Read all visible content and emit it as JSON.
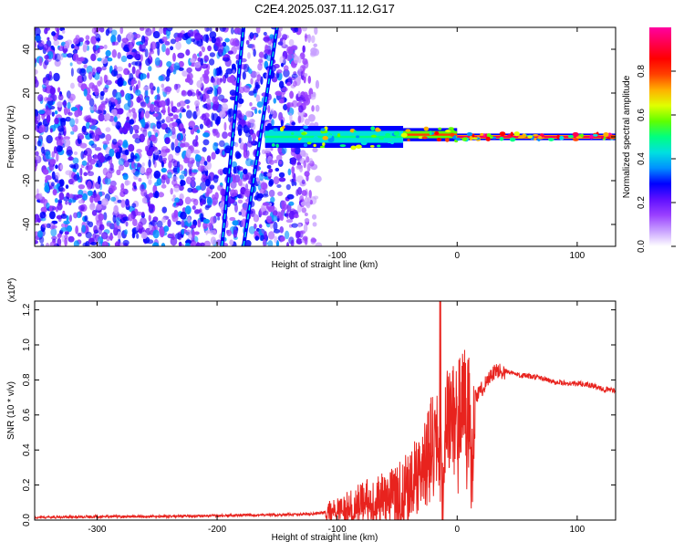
{
  "title": "C2E4.2025.037.11.12.G17",
  "chart_data": [
    {
      "type": "heatmap",
      "xlabel": "Height of straight line (km)",
      "ylabel": "Frequency (Hz)",
      "xlim": [
        -352,
        132
      ],
      "ylim": [
        -50,
        50
      ],
      "xticks": [
        -300,
        -200,
        -100,
        0,
        100
      ],
      "yticks": [
        -40,
        -20,
        0,
        20,
        40
      ],
      "colorbar": {
        "label": "Normalized spectral amplitude",
        "range": [
          0,
          1
        ],
        "ticks": [
          0.0,
          0.2,
          0.4,
          0.6,
          0.8
        ],
        "colors": [
          "#ffffff",
          "#c8a0ff",
          "#9a40ff",
          "#6010ff",
          "#0000ff",
          "#0090ff",
          "#00e0e0",
          "#00ff80",
          "#60ff00",
          "#e0ff00",
          "#ffb000",
          "#ff4000",
          "#ff0000",
          "#ff0050",
          "#ff00a0"
        ]
      },
      "features": [
        {
          "kind": "noise",
          "x_range": [
            -352,
            -140
          ]
        },
        {
          "kind": "streak",
          "from": [
            -196,
            -50
          ],
          "to": [
            -178,
            50
          ]
        },
        {
          "kind": "streak",
          "from": [
            -178,
            -50
          ],
          "to": [
            -150,
            50
          ]
        },
        {
          "kind": "band",
          "x_range": [
            -160,
            -45
          ],
          "center_hz": 0,
          "halfwidth_hz": 5,
          "level": 0.5
        },
        {
          "kind": "band",
          "x_range": [
            -45,
            0
          ],
          "center_hz": 1,
          "halfwidth_hz": 3,
          "level": 0.75
        },
        {
          "kind": "band",
          "x_range": [
            0,
            132
          ],
          "center_hz": 0,
          "halfwidth_hz": 1.5,
          "level": 0.9
        }
      ],
      "x_tick_labels": [
        "-300",
        "-200",
        "-100",
        "0",
        "100"
      ],
      "y_tick_labels": [
        "-40",
        "-20",
        "0",
        "20",
        "40"
      ],
      "cb_tick_labels": [
        "0.0",
        "0.2",
        "0.4",
        "0.6",
        "0.8"
      ]
    },
    {
      "type": "line",
      "xlabel": "Height of straight line (km)",
      "ylabel": "SNR (10 * v/v)",
      "scale_label": "(x10",
      "scale_exp": "4",
      "scale_close": ")",
      "xlim": [
        -352,
        132
      ],
      "ylim": [
        0,
        1.25
      ],
      "xticks": [
        -300,
        -200,
        -100,
        0,
        100
      ],
      "yticks": [
        0.0,
        0.2,
        0.4,
        0.6,
        0.8,
        1.0,
        1.2
      ],
      "x_tick_labels": [
        "-300",
        "-200",
        "-100",
        "0",
        "100"
      ],
      "y_tick_labels": [
        "0.0",
        "0.2",
        "0.4",
        "0.6",
        "0.8",
        "1.0",
        "1.2"
      ],
      "color": "#e8231e",
      "series": [
        {
          "x": [
            -352,
            -300,
            -250,
            -200,
            -150,
            -120,
            -100,
            -90,
            -80,
            -70,
            -60,
            -50,
            -40,
            -30,
            -25,
            -20,
            -15,
            -12,
            -10,
            -5,
            0,
            5,
            10,
            12,
            15,
            20,
            25,
            30,
            35,
            40,
            50,
            60,
            70,
            80,
            90,
            100,
            110,
            120,
            132
          ],
          "values": [
            0.015,
            0.02,
            0.02,
            0.025,
            0.03,
            0.035,
            0.05,
            0.07,
            0.09,
            0.1,
            0.1,
            0.12,
            0.18,
            0.3,
            0.4,
            0.5,
            0.45,
            0.15,
            0.55,
            0.6,
            0.62,
            0.68,
            0.7,
            0.35,
            0.7,
            0.74,
            0.8,
            0.84,
            0.85,
            0.85,
            0.83,
            0.82,
            0.81,
            0.79,
            0.78,
            0.78,
            0.77,
            0.75,
            0.74
          ]
        }
      ]
    }
  ]
}
